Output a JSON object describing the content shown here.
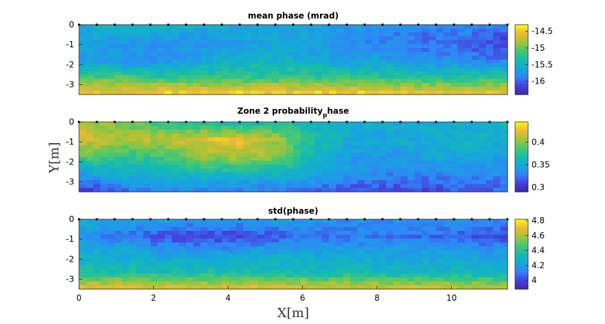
{
  "chart_data": [
    {
      "type": "heatmap",
      "title_main": "Zone 2 probability",
      "title_sub": "p",
      "title_tail": "hase",
      "xlim": [
        0,
        11.5
      ],
      "ylim": [
        -3.5,
        0
      ],
      "xticks": [],
      "yticks": [
        0,
        -1,
        -2,
        -3
      ],
      "ytick_labels": [
        "0",
        "-1",
        "-2",
        "-3"
      ],
      "clim": [
        -16.4,
        -14.3
      ],
      "cticks": [
        -14.5,
        -15,
        -15.5,
        -16
      ],
      "ctick_labels": [
        "-14.5",
        "-15",
        "-15.5",
        "-16"
      ],
      "colormap": "parula",
      "field": [
        [
          -15.6,
          -15.5,
          -15.4,
          -15.5,
          -15.6,
          -15.6,
          -15.6,
          -15.7,
          -15.8,
          -15.8,
          -15.8,
          -15.9
        ],
        [
          -15.6,
          -15.7,
          -15.8,
          -15.8,
          -15.7,
          -15.6,
          -15.7,
          -15.8,
          -15.9,
          -16.0,
          -16.0,
          -16.2
        ],
        [
          -15.7,
          -15.8,
          -15.8,
          -15.7,
          -15.5,
          -15.5,
          -15.6,
          -15.7,
          -15.7,
          -15.8,
          -15.9,
          -15.9
        ],
        [
          -15.1,
          -15.1,
          -15.2,
          -15.2,
          -15.2,
          -15.2,
          -15.2,
          -15.2,
          -15.3,
          -15.3,
          -15.3,
          -15.2
        ],
        [
          -14.5,
          -14.5,
          -14.4,
          -14.4,
          -14.4,
          -14.4,
          -14.4,
          -14.4,
          -14.4,
          -14.5,
          -14.5,
          -14.5
        ]
      ],
      "title": "mean phase (mrad)"
    },
    {
      "type": "heatmap",
      "title_main": "Zone 2 probability",
      "title_sub": "p",
      "title_tail": "hase",
      "xlim": [
        0,
        11.5
      ],
      "ylim": [
        -3.5,
        0
      ],
      "xticks": [],
      "yticks": [
        0,
        -1,
        -2,
        -3
      ],
      "ytick_labels": [
        "0",
        "-1",
        "-2",
        "-3"
      ],
      "ylabel": "Y[m]",
      "clim": [
        0.29,
        0.445
      ],
      "cticks": [
        0.4,
        0.35,
        0.3
      ],
      "ctick_labels": [
        "0.4",
        "0.35",
        "0.3"
      ],
      "colormap": "parula",
      "field": [
        [
          0.41,
          0.4,
          0.38,
          0.37,
          0.36,
          0.37,
          0.36,
          0.35,
          0.35,
          0.35,
          0.35,
          0.36
        ],
        [
          0.42,
          0.41,
          0.41,
          0.42,
          0.43,
          0.41,
          0.37,
          0.35,
          0.35,
          0.35,
          0.36,
          0.35
        ],
        [
          0.39,
          0.38,
          0.38,
          0.4,
          0.41,
          0.4,
          0.36,
          0.34,
          0.34,
          0.35,
          0.35,
          0.34
        ],
        [
          0.34,
          0.35,
          0.36,
          0.36,
          0.36,
          0.36,
          0.35,
          0.34,
          0.33,
          0.33,
          0.33,
          0.33
        ],
        [
          0.3,
          0.32,
          0.33,
          0.33,
          0.33,
          0.32,
          0.32,
          0.31,
          0.31,
          0.31,
          0.32,
          0.32
        ]
      ]
    },
    {
      "type": "heatmap",
      "title": "std(phase)",
      "xlim": [
        0,
        11.5
      ],
      "ylim": [
        -3.5,
        0
      ],
      "xticks": [
        0,
        2,
        4,
        6,
        8,
        10
      ],
      "xtick_labels": [
        "0",
        "2",
        "4",
        "6",
        "8",
        "10"
      ],
      "xlabel": "X[m]",
      "yticks": [
        0,
        -1,
        -2,
        -3
      ],
      "ytick_labels": [
        "0",
        "-1",
        "-2",
        "-3"
      ],
      "clim": [
        3.88,
        4.82
      ],
      "cticks": [
        4.8,
        4.6,
        4.4,
        4.2,
        4
      ],
      "ctick_labels": [
        "4.8",
        "4.6",
        "4.4",
        "4.2",
        "4"
      ],
      "colormap": "parula",
      "field": [
        [
          4.25,
          4.22,
          4.2,
          4.18,
          4.18,
          4.2,
          4.18,
          4.15,
          4.15,
          4.15,
          4.15,
          4.15
        ],
        [
          4.18,
          4.1,
          4.03,
          4.0,
          3.98,
          4.03,
          4.08,
          4.1,
          4.1,
          4.08,
          4.05,
          3.98
        ],
        [
          4.28,
          4.25,
          4.22,
          4.2,
          4.22,
          4.25,
          4.25,
          4.22,
          4.22,
          4.22,
          4.2,
          4.22
        ],
        [
          4.35,
          4.35,
          4.33,
          4.35,
          4.35,
          4.33,
          4.33,
          4.33,
          4.3,
          4.3,
          4.3,
          4.28
        ],
        [
          4.72,
          4.72,
          4.72,
          4.7,
          4.7,
          4.7,
          4.7,
          4.68,
          4.68,
          4.66,
          4.66,
          4.65
        ]
      ]
    }
  ]
}
